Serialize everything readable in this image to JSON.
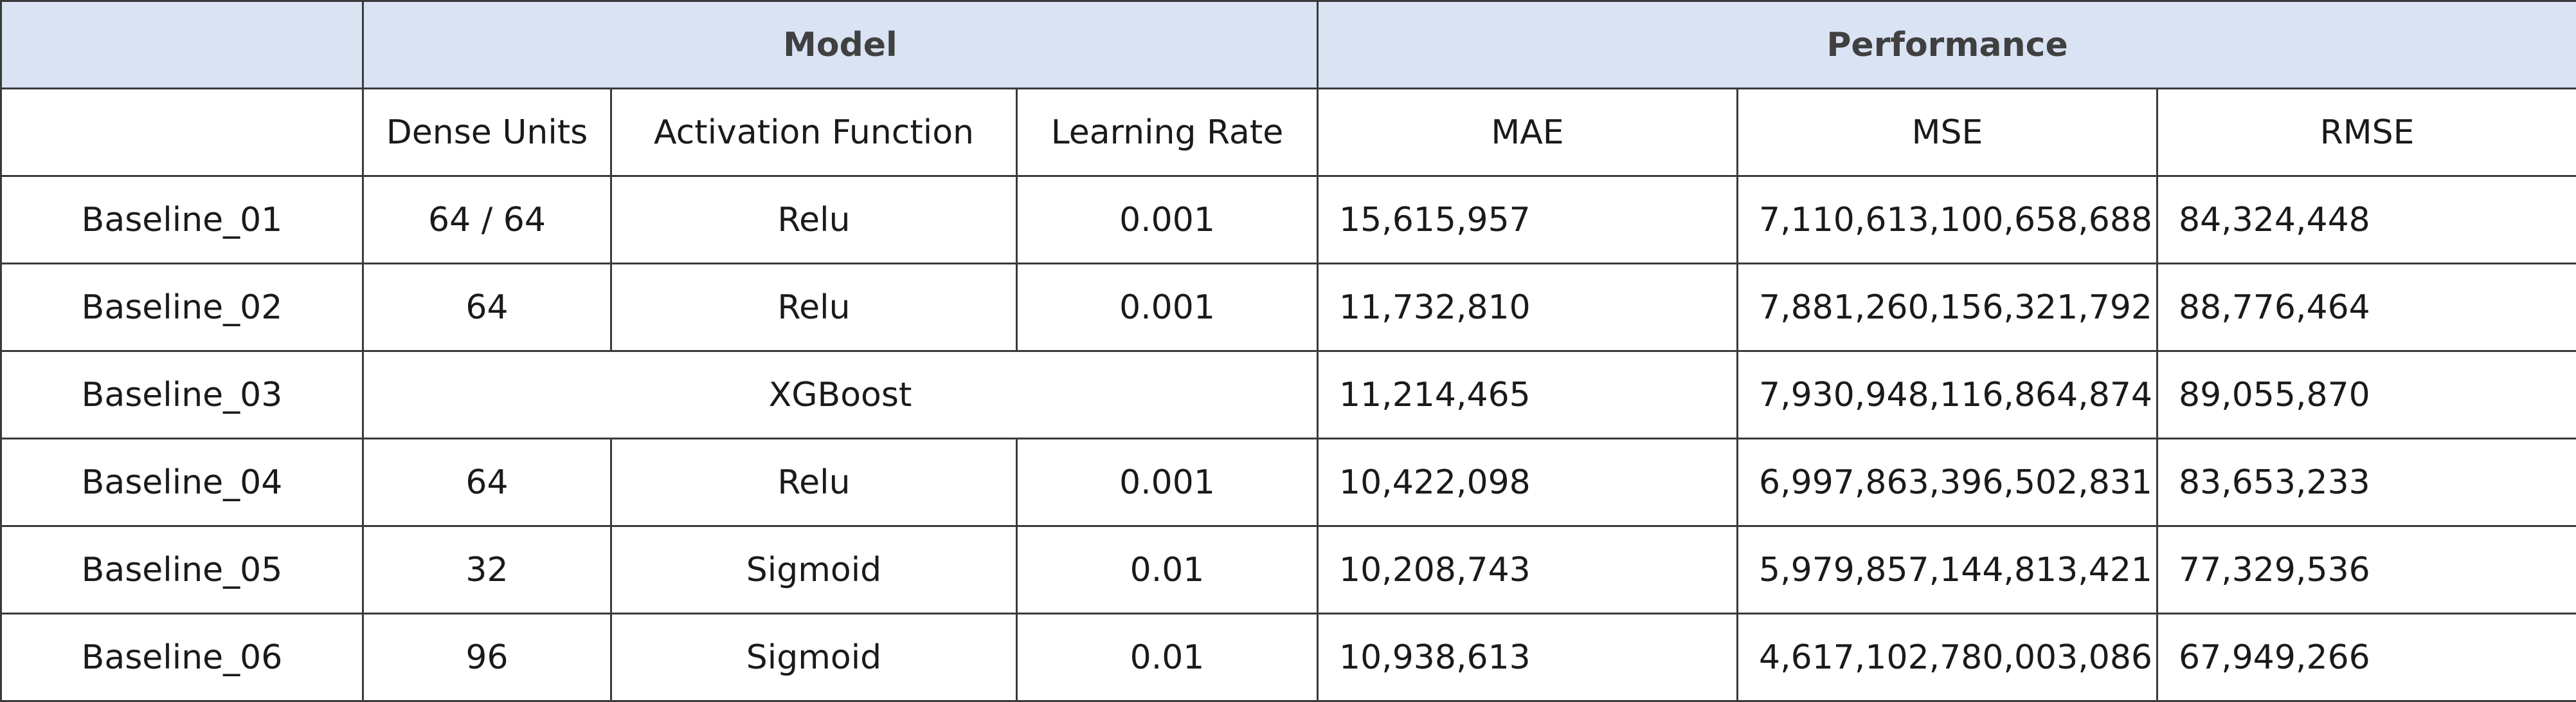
{
  "table": {
    "group_headers": {
      "model": "Model",
      "performance": "Performance"
    },
    "column_headers": {
      "dense_units": "Dense Units",
      "activation_function": "Activation Function",
      "learning_rate": "Learning Rate",
      "mae": "MAE",
      "mse": "MSE",
      "rmse": "RMSE"
    },
    "rows": [
      {
        "name": "Baseline_01",
        "dense_units": "64 / 64",
        "activation": "Relu",
        "learning_rate": "0.001",
        "mae": "15,615,957",
        "mse": "7,110,613,100,658,688",
        "rmse": "84,324,448"
      },
      {
        "name": "Baseline_02",
        "dense_units": "64",
        "activation": "Relu",
        "learning_rate": "0.001",
        "mae": "11,732,810",
        "mse": "7,881,260,156,321,792",
        "rmse": "88,776,464"
      },
      {
        "name": "Baseline_03",
        "model": "XGBoost",
        "mae": "11,214,465",
        "mse": "7,930,948,116,864,874",
        "rmse": "89,055,870"
      },
      {
        "name": "Baseline_04",
        "dense_units": "64",
        "activation": "Relu",
        "learning_rate": "0.001",
        "mae": "10,422,098",
        "mse": "6,997,863,396,502,831",
        "rmse": "83,653,233"
      },
      {
        "name": "Baseline_05",
        "dense_units": "32",
        "activation": "Sigmoid",
        "learning_rate": "0.01",
        "mae": "10,208,743",
        "mse": "5,979,857,144,813,421",
        "rmse": "77,329,536"
      },
      {
        "name": "Baseline_06",
        "dense_units": "96",
        "activation": "Sigmoid",
        "learning_rate": "0.01",
        "mae": "10,938,613",
        "mse": "4,617,102,780,003,086",
        "rmse": "67,949,266"
      }
    ]
  },
  "colors": {
    "header_background": "#dae3f3",
    "border": "#3a3a3a"
  }
}
